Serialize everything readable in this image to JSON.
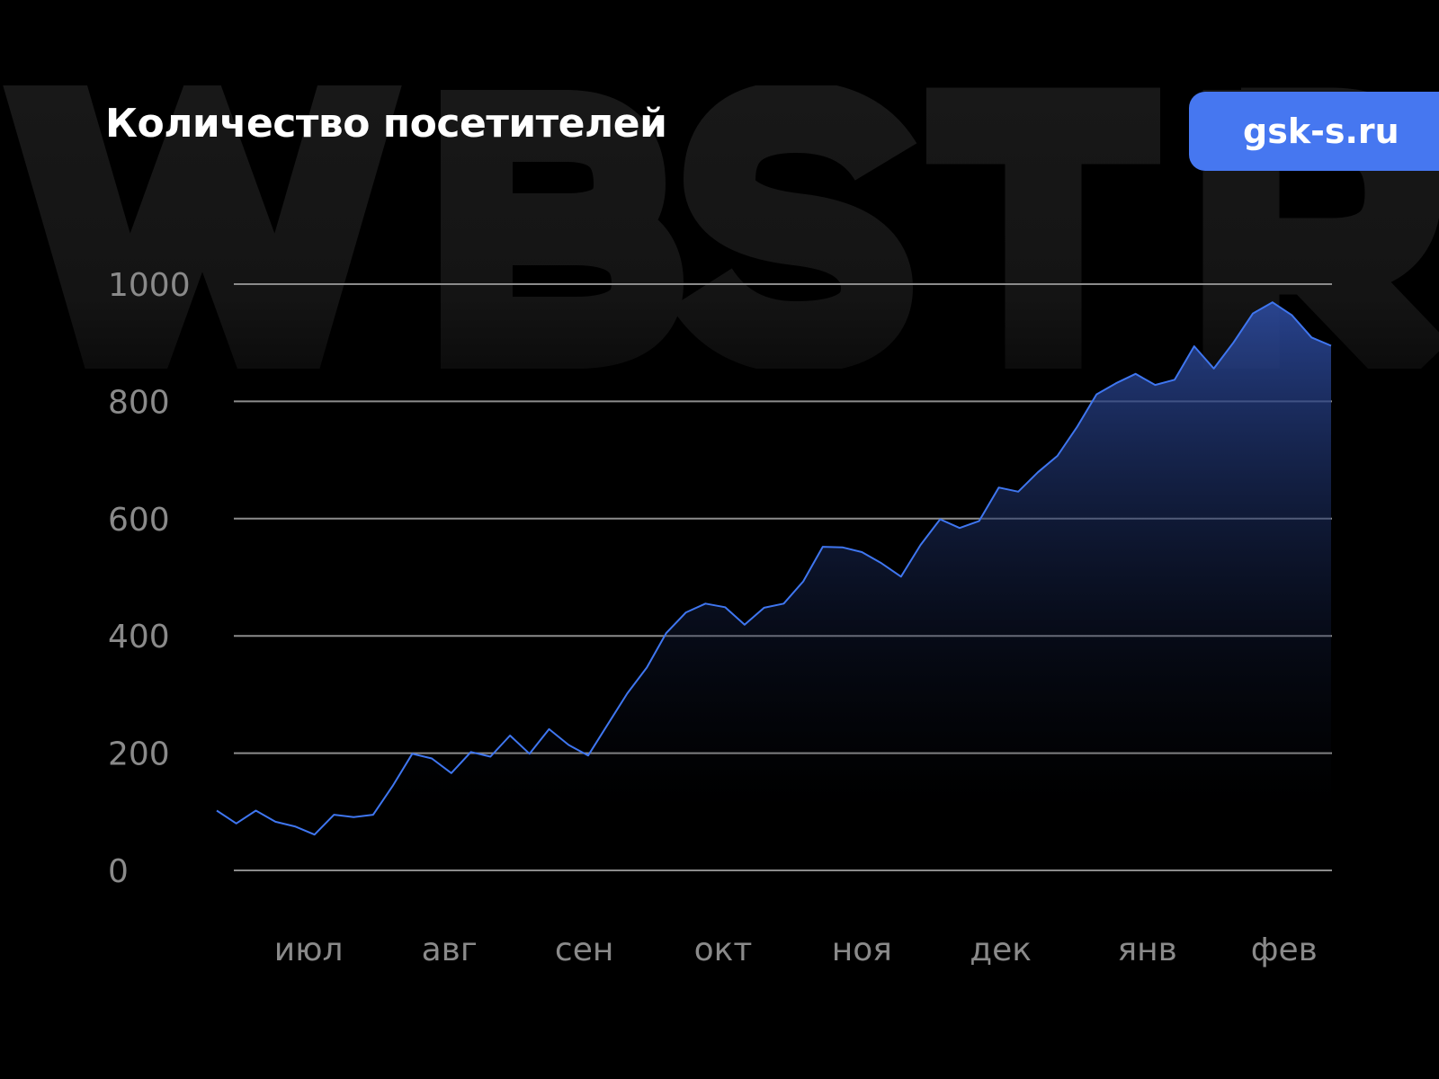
{
  "watermark": "WBSTR",
  "badge": {
    "label": "gsk-s.ru",
    "color": "#4677f0"
  },
  "chart_data": {
    "type": "area",
    "title": "Количество посетителей",
    "xlabel": "",
    "ylabel": "",
    "ylim": [
      0,
      1000
    ],
    "yticks": [
      0,
      200,
      400,
      600,
      800,
      1000
    ],
    "xtick_labels": [
      "июл",
      "авг",
      "сен",
      "окт",
      "ноя",
      "дек",
      "янв",
      "фев"
    ],
    "grid": true,
    "line_color": "#3f76f0",
    "values": [
      102,
      80,
      102,
      83,
      75,
      61,
      95,
      91,
      95,
      144,
      199,
      191,
      166,
      202,
      194,
      230,
      199,
      241,
      214,
      196,
      249,
      302,
      346,
      405,
      440,
      455,
      449,
      419,
      448,
      455,
      493,
      552,
      551,
      543,
      524,
      501,
      555,
      599,
      584,
      596,
      653,
      646,
      679,
      707,
      756,
      812,
      831,
      847,
      828,
      837,
      894,
      856,
      900,
      950,
      969,
      947,
      909,
      895
    ]
  }
}
